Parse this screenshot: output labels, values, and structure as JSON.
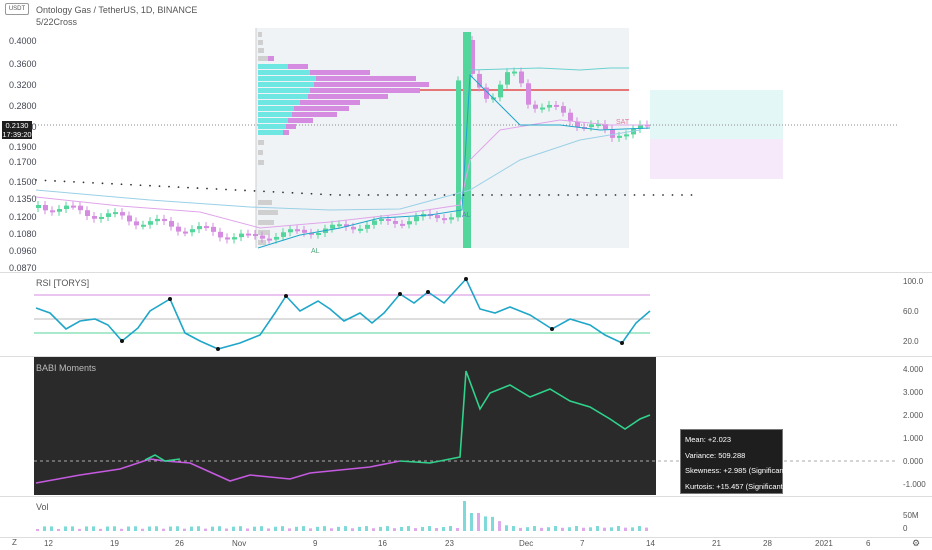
{
  "symbol_badge": "USDT",
  "header": {
    "title": "Ontology Gas / TetherUS, 1D, BINANCE",
    "indicator": "5/22Cross"
  },
  "price_axis": [
    "0.4000",
    "0.3600",
    "0.3200",
    "0.2800",
    "0.2400",
    "0.1900",
    "0.1700",
    "0.1500",
    "0.1350",
    "0.1200",
    "0.1080",
    "0.0960",
    "0.0870"
  ],
  "price_badge": {
    "price": "0.2130",
    "countdown": "17:39:20"
  },
  "markers": {
    "sat": "SAT",
    "al1": "AL",
    "al2": "AL"
  },
  "rsi": {
    "title": "RSI [TORYS]",
    "axis": [
      "100.0",
      "60.0",
      "20.0"
    ]
  },
  "moments": {
    "title": "BABI Moments",
    "axis": [
      "4.000",
      "3.000",
      "2.000",
      "1.000",
      "0.000",
      "-1.000"
    ],
    "tooltip": {
      "mean": "Mean: +2.023",
      "variance": "Variance: 509.288",
      "skewness": "Skewness: +2.985 (Significant)",
      "kurtosis": "Kurtosis: +15.457 (Significant)"
    }
  },
  "vol": {
    "title": "Vol",
    "axis": [
      "50M",
      "0"
    ]
  },
  "time_axis": [
    "12",
    "19",
    "26",
    "Nov",
    "9",
    "16",
    "23",
    "Dec",
    "7",
    "14",
    "21",
    "28",
    "2021",
    "6"
  ],
  "bottom_left": "Z",
  "colors": {
    "up": "#53d69b",
    "down": "#d58be0",
    "rsi": "#1fa6c9",
    "accent_red": "#e02b2b",
    "teal_dots": "#2ec4c6"
  }
}
